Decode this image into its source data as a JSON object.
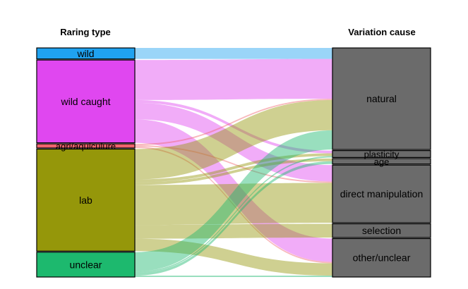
{
  "chart_data": {
    "type": "alluvial",
    "axes": [
      "Raring type",
      "Variation cause"
    ],
    "left_nodes": [
      {
        "name": "wild",
        "color": "#1FA2F0",
        "value": 4
      },
      {
        "name": "wild caught",
        "color": "#E047F0",
        "value": 30
      },
      {
        "name": "agri/aquiculure",
        "color": "#F0646C",
        "value": 1.5
      },
      {
        "name": "lab",
        "color": "#95970A",
        "value": 37
      },
      {
        "name": "unclear",
        "color": "#1DB96E",
        "value": 9
      }
    ],
    "right_nodes": [
      {
        "name": "natural",
        "color": "#6B6B6B",
        "value": 37
      },
      {
        "name": "plasticity",
        "color": "#6B6B6B",
        "value": 2.5
      },
      {
        "name": "age",
        "color": "#6B6B6B",
        "value": 2
      },
      {
        "name": "direct manipulation",
        "color": "#6B6B6B",
        "value": 21
      },
      {
        "name": "selection",
        "color": "#6B6B6B",
        "value": 5
      },
      {
        "name": "other/unclear",
        "color": "#6B6B6B",
        "value": 14
      }
    ],
    "flows": [
      {
        "from": "wild",
        "to": "natural",
        "value": 4
      },
      {
        "from": "wild caught",
        "to": "natural",
        "value": 14.5
      },
      {
        "from": "wild caught",
        "to": "plasticity",
        "value": 1
      },
      {
        "from": "wild caught",
        "to": "direct manipulation",
        "value": 6
      },
      {
        "from": "wild caught",
        "to": "other/unclear",
        "value": 8.5
      },
      {
        "from": "agri/aquiculure",
        "to": "natural",
        "value": 0.5
      },
      {
        "from": "agri/aquiculure",
        "to": "direct manipulation",
        "value": 0.5
      },
      {
        "from": "agri/aquiculure",
        "to": "other/unclear",
        "value": 0.5
      },
      {
        "from": "lab",
        "to": "natural",
        "value": 11
      },
      {
        "from": "lab",
        "to": "plasticity",
        "value": 1
      },
      {
        "from": "lab",
        "to": "age",
        "value": 1
      },
      {
        "from": "lab",
        "to": "direct manipulation",
        "value": 14.5
      },
      {
        "from": "lab",
        "to": "selection",
        "value": 5
      },
      {
        "from": "lab",
        "to": "other/unclear",
        "value": 4.5
      },
      {
        "from": "unclear",
        "to": "natural",
        "value": 7
      },
      {
        "from": "unclear",
        "to": "plasticity",
        "value": 0.5
      },
      {
        "from": "unclear",
        "to": "age",
        "value": 1
      },
      {
        "from": "unclear",
        "to": "other/unclear",
        "value": 0.5
      }
    ]
  }
}
